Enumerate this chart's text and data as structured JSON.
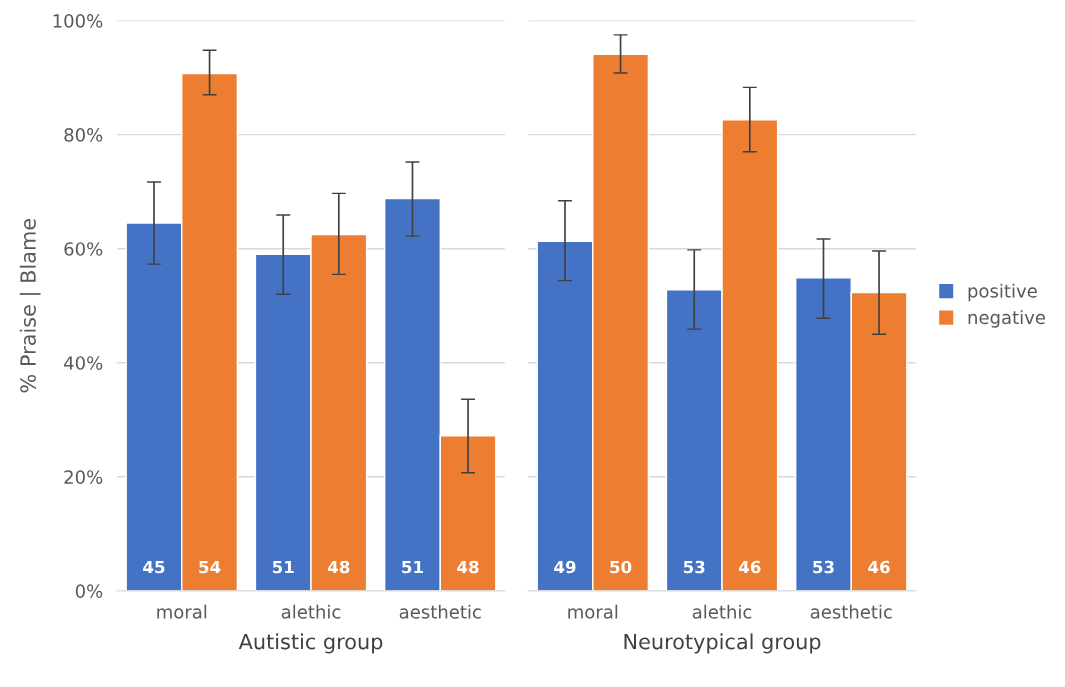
{
  "chart_data": [
    {
      "type": "bar",
      "categories": [
        "moral",
        "alethic",
        "aesthetic"
      ],
      "xlabel": "Autistic group",
      "ylabel": "% Praise | Blame",
      "ylim": [
        0,
        100
      ],
      "yticks": [
        {
          "value": 0,
          "label": "0%"
        },
        {
          "value": 20,
          "label": "20%"
        },
        {
          "value": 40,
          "label": "40%"
        },
        {
          "value": 60,
          "label": "60%"
        },
        {
          "value": 80,
          "label": "80%"
        },
        {
          "value": 100,
          "label": "100%"
        }
      ],
      "grid": "y",
      "annotations": [
        "45",
        "54",
        "51",
        "48",
        "51",
        "48"
      ],
      "series": [
        {
          "color": "#4472c4",
          "values": [
            64.5,
            59,
            68.8
          ],
          "errors": [
            [
              57.3,
              71.7
            ],
            [
              52,
              65.9
            ],
            [
              62.2,
              75.2
            ]
          ]
        },
        {
          "color": "#ed7d31",
          "values": [
            90.7,
            62.5,
            27.2
          ],
          "errors": [
            [
              87,
              94.8
            ],
            [
              55.5,
              69.7
            ],
            [
              20.7,
              33.6
            ]
          ]
        }
      ]
    },
    {
      "type": "bar",
      "categories": [
        "moral",
        "alethic",
        "aesthetic"
      ],
      "xlabel": "Neurotypical group",
      "ylim": [
        0,
        100
      ],
      "yticks": [
        0,
        20,
        40,
        60,
        80,
        100
      ],
      "grid": "y",
      "legend": "right",
      "tick_labels": "x",
      "annotations": [
        "49",
        "50",
        "53",
        "46",
        "53",
        "46"
      ],
      "series": [
        {
          "name": "positive",
          "color": "#4472c4",
          "values": [
            61.3,
            52.8,
            54.9
          ],
          "errors": [
            [
              54.4,
              68.4
            ],
            [
              45.9,
              59.8
            ],
            [
              47.8,
              61.7
            ]
          ]
        },
        {
          "name": "negative",
          "color": "#ed7d31",
          "values": [
            94.1,
            82.6,
            52.3
          ],
          "errors": [
            [
              90.8,
              97.5
            ],
            [
              77,
              88.3
            ],
            [
              45,
              59.6
            ]
          ]
        }
      ]
    }
  ]
}
